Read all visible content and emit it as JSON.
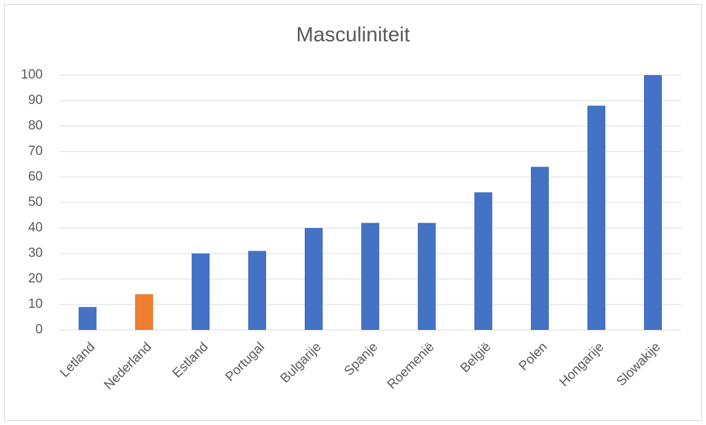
{
  "chart_data": {
    "type": "bar",
    "title": "Masculiniteit",
    "categories": [
      "Letland",
      "Nederland",
      "Estland",
      "Portugal",
      "Bulgarije",
      "Spanje",
      "Roemenië",
      "België",
      "Polen",
      "Hongarije",
      "Slowakije"
    ],
    "values": [
      9,
      14,
      30,
      31,
      40,
      42,
      42,
      54,
      64,
      88,
      100
    ],
    "colors": [
      "#4472c4",
      "#ed7d31",
      "#4472c4",
      "#4472c4",
      "#4472c4",
      "#4472c4",
      "#4472c4",
      "#4472c4",
      "#4472c4",
      "#4472c4",
      "#4472c4"
    ],
    "ylim": [
      0,
      100
    ],
    "yticks": [
      0,
      10,
      20,
      30,
      40,
      50,
      60,
      70,
      80,
      90,
      100
    ],
    "grid": true
  }
}
